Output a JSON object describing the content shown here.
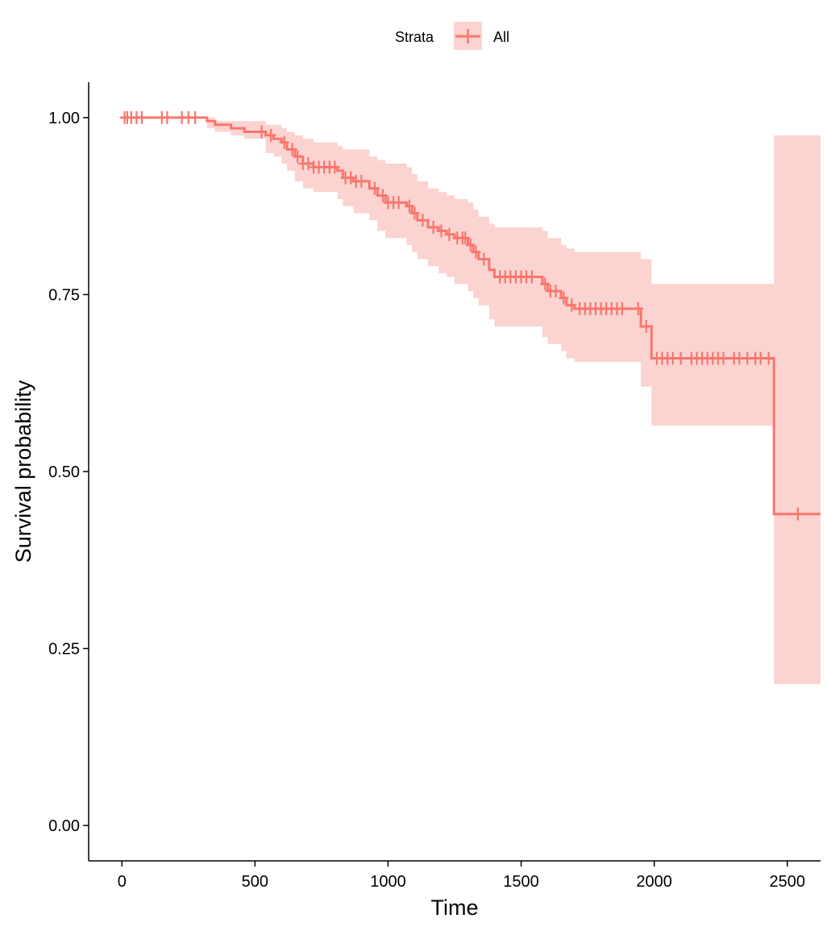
{
  "chart_data": {
    "type": "line",
    "subtype": "kaplan-meier survival curve with confidence band",
    "title": "",
    "xlabel": "Time",
    "ylabel": "Survival probability",
    "xlim": [
      -125,
      2625
    ],
    "ylim": [
      -0.05,
      1.05
    ],
    "xticks": [
      0,
      500,
      1000,
      1500,
      2000,
      2500
    ],
    "yticks": [
      0.0,
      0.25,
      0.5,
      0.75,
      1.0
    ],
    "xtick_labels": [
      "0",
      "500",
      "1000",
      "1500",
      "2000",
      "2500"
    ],
    "ytick_labels": [
      "0.00",
      "0.25",
      "0.50",
      "0.75",
      "1.00"
    ],
    "grid": false,
    "legend": {
      "position": "top",
      "title": "Strata",
      "entries": [
        "All"
      ]
    },
    "colors": {
      "line": "#F8766D",
      "band": "#FBD3D0"
    },
    "series": [
      {
        "name": "All",
        "step_points": [
          [
            0,
            1.0
          ],
          [
            320,
            0.995
          ],
          [
            350,
            0.99
          ],
          [
            410,
            0.985
          ],
          [
            460,
            0.98
          ],
          [
            540,
            0.975
          ],
          [
            570,
            0.97
          ],
          [
            600,
            0.965
          ],
          [
            620,
            0.955
          ],
          [
            650,
            0.945
          ],
          [
            680,
            0.935
          ],
          [
            720,
            0.93
          ],
          [
            810,
            0.925
          ],
          [
            830,
            0.915
          ],
          [
            870,
            0.91
          ],
          [
            930,
            0.9
          ],
          [
            960,
            0.89
          ],
          [
            990,
            0.88
          ],
          [
            1070,
            0.875
          ],
          [
            1090,
            0.865
          ],
          [
            1110,
            0.855
          ],
          [
            1150,
            0.845
          ],
          [
            1190,
            0.84
          ],
          [
            1220,
            0.835
          ],
          [
            1250,
            0.83
          ],
          [
            1300,
            0.82
          ],
          [
            1320,
            0.81
          ],
          [
            1340,
            0.8
          ],
          [
            1380,
            0.785
          ],
          [
            1400,
            0.775
          ],
          [
            1580,
            0.765
          ],
          [
            1600,
            0.755
          ],
          [
            1650,
            0.745
          ],
          [
            1670,
            0.735
          ],
          [
            1700,
            0.73
          ],
          [
            1950,
            0.705
          ],
          [
            1990,
            0.66
          ],
          [
            2450,
            0.44
          ],
          [
            2625,
            0.44
          ]
        ],
        "ci_band": [
          [
            0,
            1.0,
            1.0
          ],
          [
            320,
            0.985,
            1.0
          ],
          [
            350,
            0.98,
            0.995
          ],
          [
            410,
            0.975,
            0.995
          ],
          [
            460,
            0.97,
            0.995
          ],
          [
            540,
            0.95,
            0.99
          ],
          [
            570,
            0.945,
            0.99
          ],
          [
            600,
            0.935,
            0.985
          ],
          [
            620,
            0.925,
            0.98
          ],
          [
            650,
            0.91,
            0.975
          ],
          [
            680,
            0.9,
            0.97
          ],
          [
            720,
            0.895,
            0.965
          ],
          [
            810,
            0.885,
            0.96
          ],
          [
            830,
            0.875,
            0.955
          ],
          [
            870,
            0.865,
            0.955
          ],
          [
            930,
            0.855,
            0.945
          ],
          [
            960,
            0.84,
            0.94
          ],
          [
            990,
            0.83,
            0.935
          ],
          [
            1070,
            0.82,
            0.93
          ],
          [
            1090,
            0.81,
            0.92
          ],
          [
            1110,
            0.8,
            0.91
          ],
          [
            1150,
            0.79,
            0.9
          ],
          [
            1190,
            0.78,
            0.895
          ],
          [
            1220,
            0.775,
            0.89
          ],
          [
            1250,
            0.765,
            0.885
          ],
          [
            1300,
            0.755,
            0.88
          ],
          [
            1320,
            0.745,
            0.87
          ],
          [
            1340,
            0.735,
            0.86
          ],
          [
            1380,
            0.715,
            0.85
          ],
          [
            1400,
            0.705,
            0.845
          ],
          [
            1580,
            0.69,
            0.84
          ],
          [
            1600,
            0.68,
            0.83
          ],
          [
            1650,
            0.67,
            0.82
          ],
          [
            1670,
            0.66,
            0.815
          ],
          [
            1700,
            0.655,
            0.81
          ],
          [
            1950,
            0.62,
            0.8
          ],
          [
            1990,
            0.565,
            0.765
          ],
          [
            2450,
            0.2,
            0.975
          ],
          [
            2625,
            0.2,
            0.975
          ]
        ],
        "censor_times": [
          10,
          20,
          35,
          55,
          75,
          150,
          170,
          225,
          250,
          275,
          525,
          560,
          610,
          640,
          660,
          680,
          700,
          720,
          740,
          760,
          780,
          800,
          840,
          860,
          880,
          900,
          950,
          980,
          1000,
          1020,
          1040,
          1080,
          1100,
          1130,
          1170,
          1200,
          1230,
          1260,
          1280,
          1290,
          1310,
          1330,
          1360,
          1420,
          1440,
          1460,
          1480,
          1500,
          1520,
          1540,
          1590,
          1610,
          1630,
          1660,
          1690,
          1720,
          1740,
          1760,
          1780,
          1800,
          1820,
          1840,
          1860,
          1880,
          1940,
          1970,
          2010,
          2030,
          2050,
          2070,
          2100,
          2140,
          2160,
          2180,
          2200,
          2220,
          2240,
          2260,
          2300,
          2320,
          2350,
          2380,
          2400,
          2430,
          2540
        ]
      }
    ]
  }
}
